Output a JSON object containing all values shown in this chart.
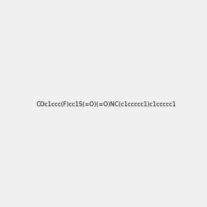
{
  "smiles": "COc1ccc(F)cc1S(=O)(=O)NC(c1ccccc1)c1ccccc1",
  "title": "",
  "background_color": "#f0f0f0",
  "bond_color": "#000000",
  "atom_colors": {
    "N": "#0000ff",
    "O": "#ff0000",
    "S": "#ccaa00",
    "F": "#ff00ff",
    "H_N": "#008080"
  },
  "figsize": [
    3.0,
    3.0
  ],
  "dpi": 100
}
